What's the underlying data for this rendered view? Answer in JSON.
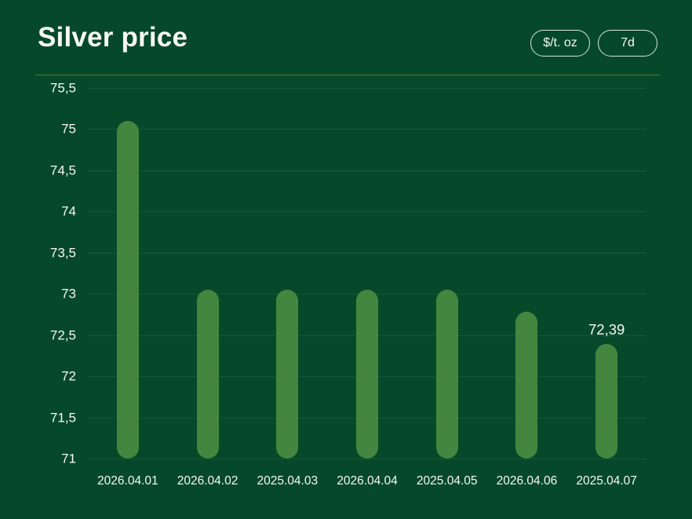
{
  "header": {
    "title": "Silver price",
    "unit_button": "$/t. oz",
    "range_button": "7d"
  },
  "colors": {
    "background": "#06492A",
    "bar": "#44863F",
    "text": "#F7F8F2",
    "separator": "#4E7C2E",
    "gridline": "rgba(255,255,255,0.07)"
  },
  "chart_data": {
    "type": "bar",
    "title": "Silver price",
    "unit": "$/t. oz",
    "range": "7d",
    "categories": [
      "2026.04.01",
      "2026.04.02",
      "2025.04.03",
      "2026.04.04",
      "2025.04.05",
      "2026.04.06",
      "2025.04.07"
    ],
    "values": [
      75.1,
      73.05,
      73.05,
      73.05,
      73.05,
      72.78,
      72.39
    ],
    "value_label": {
      "index": 6,
      "text": "72,39"
    },
    "y_ticks": [
      "75,5",
      "75",
      "74,5",
      "74",
      "73,5",
      "73",
      "72,5",
      "72",
      "71,5",
      "71"
    ],
    "ylim": [
      71,
      75.5
    ],
    "xlabel": "",
    "ylabel": "",
    "grid": "horizontal",
    "legend": "none"
  }
}
